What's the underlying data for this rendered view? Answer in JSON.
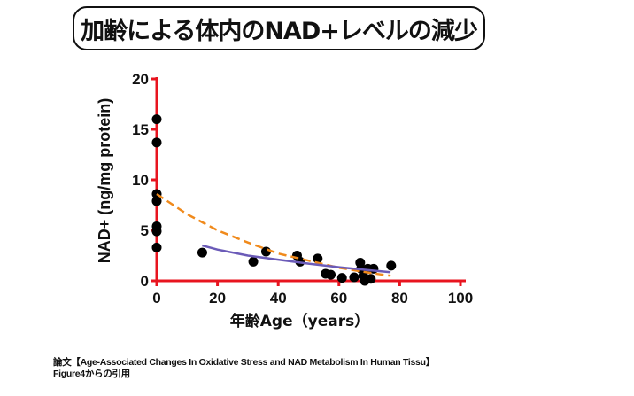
{
  "title": "加齢による体内のNAD+レベルの減少",
  "citation": {
    "line1": "論文【Age-Associated Changes In Oxidative Stress and NAD Metabolism In Human Tissu】",
    "line2": "Figure4からの引用"
  },
  "chart_data": {
    "type": "scatter",
    "xlabel": "年齢Age（years）",
    "ylabel": "NAD+ (ng/mg protein)",
    "xlim": [
      0,
      100
    ],
    "ylim": [
      0,
      20
    ],
    "xticks": [
      0,
      20,
      40,
      60,
      80,
      100
    ],
    "yticks": [
      0,
      5,
      10,
      15,
      20
    ],
    "grid": false,
    "colors": {
      "axis": "#e8141f",
      "points": "#000000",
      "dashed_fit": "#f08a1c",
      "solid_fit": "#6b5bb8"
    },
    "points": [
      [
        0,
        16.0
      ],
      [
        0,
        13.7
      ],
      [
        0,
        8.6
      ],
      [
        0,
        7.9
      ],
      [
        0,
        5.4
      ],
      [
        0,
        4.9
      ],
      [
        0,
        3.3
      ],
      [
        15,
        2.8
      ],
      [
        31.8,
        1.9
      ],
      [
        36,
        2.9
      ],
      [
        46.2,
        2.5
      ],
      [
        47.2,
        1.9
      ],
      [
        53,
        2.2
      ],
      [
        55.6,
        0.7
      ],
      [
        57.3,
        0.6
      ],
      [
        61,
        0.3
      ],
      [
        65,
        0.35
      ],
      [
        67,
        1.8
      ],
      [
        67.3,
        1.2
      ],
      [
        68,
        0.5
      ],
      [
        68.5,
        0.0
      ],
      [
        69.5,
        1.2
      ],
      [
        70.5,
        0.2
      ],
      [
        71.4,
        1.2
      ],
      [
        77.2,
        1.5
      ]
    ],
    "fit_lines": [
      {
        "style": "dashed",
        "color": "#f08a1c",
        "points": [
          [
            0,
            8.6
          ],
          [
            10,
            6.6
          ],
          [
            20,
            5.0
          ],
          [
            30,
            3.8
          ],
          [
            40,
            2.7
          ],
          [
            50,
            2.0
          ],
          [
            60,
            1.3
          ],
          [
            70,
            0.8
          ],
          [
            77,
            0.5
          ]
        ]
      },
      {
        "style": "solid",
        "color": "#6b5bb8",
        "points": [
          [
            15,
            3.5
          ],
          [
            20,
            3.1
          ],
          [
            30,
            2.5
          ],
          [
            40,
            2.1
          ],
          [
            50,
            1.7
          ],
          [
            60,
            1.35
          ],
          [
            70,
            1.05
          ],
          [
            77,
            0.85
          ]
        ]
      }
    ]
  }
}
